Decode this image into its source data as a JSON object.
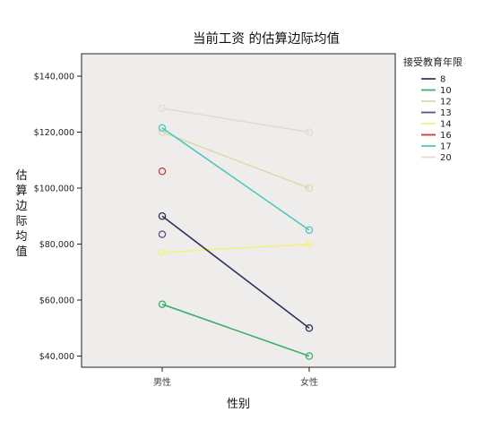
{
  "chart_data": {
    "type": "line",
    "title": "当前工资 的估算边际均值",
    "xlabel": "性别",
    "ylabel": "估算边际均值",
    "categories": [
      "男性",
      "女性"
    ],
    "ylim": [
      36000,
      148000
    ],
    "yticks": [
      40000,
      60000,
      80000,
      100000,
      120000,
      140000
    ],
    "ytick_labels": [
      "$40,000",
      "$60,000",
      "$80,000",
      "$100,000",
      "$120,000",
      "$140,000"
    ],
    "grid": false,
    "legend_title": "接受教育年限",
    "legend_position": "right",
    "markers": "open-circle",
    "series": [
      {
        "name": "8",
        "color": "#3a3a63",
        "values": [
          null,
          null
        ]
      },
      {
        "name": "10",
        "color": "#3bb06a",
        "values": [
          58500,
          40000
        ]
      },
      {
        "name": "12",
        "color": "#ddd9ae",
        "values": [
          120000,
          100000
        ]
      },
      {
        "name": "13",
        "color": "#5d4f8a",
        "values": [
          83500,
          null
        ]
      },
      {
        "name": "14",
        "color": "#f2f27a",
        "values": [
          77000,
          80000
        ]
      },
      {
        "name": "16",
        "color": "#c93a3a",
        "values": [
          106000,
          null
        ]
      },
      {
        "name": "17",
        "color": "#4fc8bd",
        "values": [
          121500,
          85000
        ]
      },
      {
        "name": "20",
        "color": "#e3d9d9",
        "values": [
          128500,
          120000
        ]
      },
      {
        "name": "",
        "color": "#2f2f5a",
        "values": [
          90000,
          50000
        ]
      }
    ]
  }
}
